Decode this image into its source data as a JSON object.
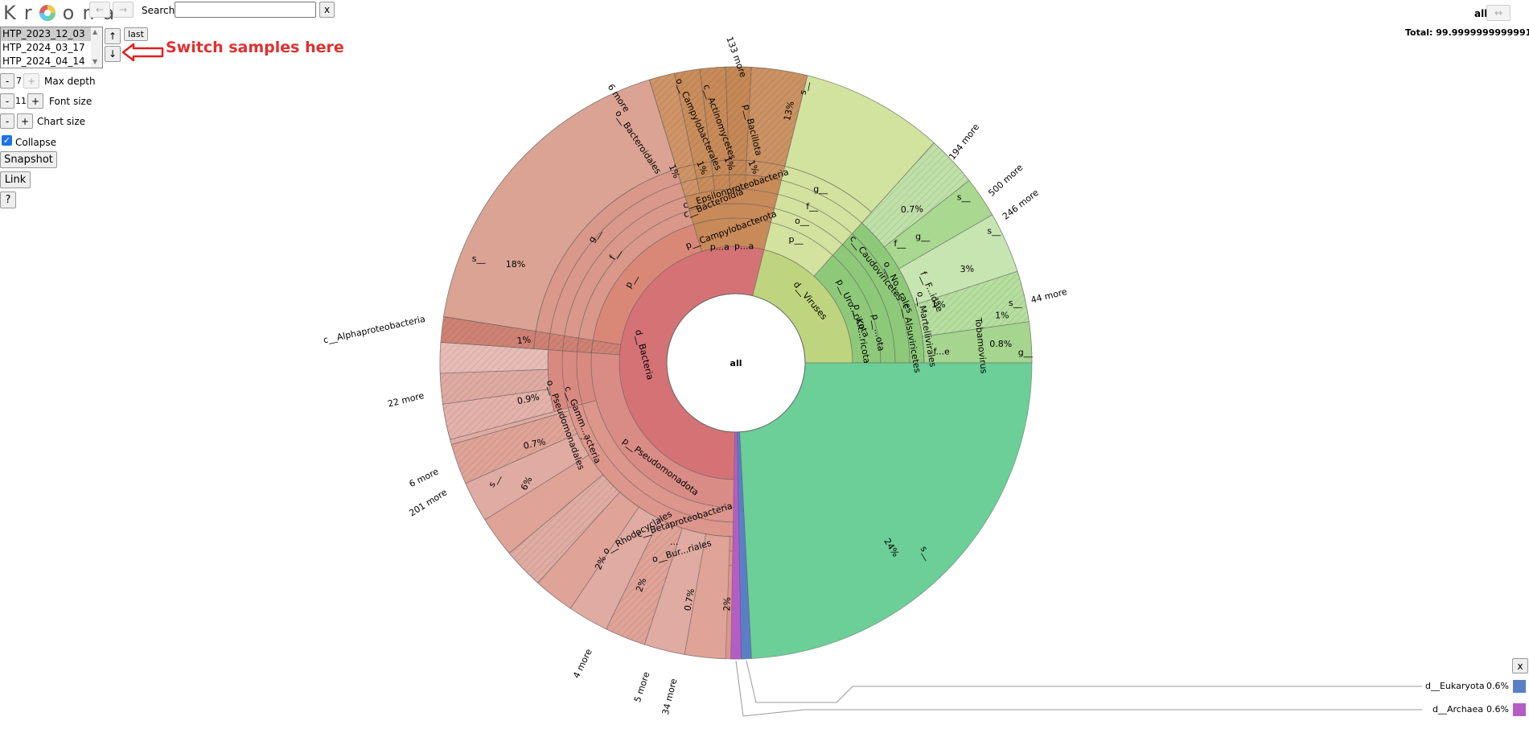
{
  "header": {
    "logo": [
      "K",
      "r",
      "o",
      "n",
      "a"
    ],
    "back_glyph": "←",
    "fwd_glyph": "→",
    "search_label": "Search:",
    "search_value": "",
    "search_clear": "x"
  },
  "datasets": {
    "options": [
      "HTP_2023_12_03",
      "HTP_2024_03_17",
      "HTP_2024_04_14"
    ],
    "selected": "HTP_2023_12_03",
    "prev_glyph": "↑",
    "next_glyph": "↓",
    "last_label": "last",
    "annotation": "Switch samples here"
  },
  "controls": {
    "max_depth": {
      "value": "7",
      "label": "Max depth",
      "minus": "-",
      "plus": "+"
    },
    "font_size": {
      "value": "11",
      "label": "Font size",
      "minus": "-",
      "plus": "+"
    },
    "chart_size": {
      "label": "Chart size",
      "minus": "-",
      "plus": "+"
    },
    "collapse_label": "Collapse",
    "collapse_checked": true,
    "snapshot_label": "Snapshot",
    "link_label": "Link",
    "help_label": "?"
  },
  "top_right": {
    "focus": "all",
    "expand_glyph": "↔",
    "total": "Total: 99.9999999999991"
  },
  "chart": {
    "center_label": "all",
    "labels": {
      "bacteria": "d__Bacteria",
      "viruses": "d__Viruses",
      "pseudomonadota": "p__Pseudomonadota",
      "campylobacterota": "p__Campylobacterota",
      "bacillota": "p__Bacillota",
      "actinomycetes": "c__Actinomycetes",
      "campylobacterales": "o__Campylobacterales",
      "bacteroidales": "o__Bacteroidales",
      "epsilon": "c__Epsilonproteobacteria",
      "bacteroidia": "c__Bacteroidia",
      "alpha": "c__Alphaproteobacteria",
      "gamma": "c__Gamm...acteria",
      "pseudomonadales": "o__Pseudomonadales",
      "beta": "c__Betaproteobacteria",
      "rhodocyclales": "o__Rhodocyclales",
      "burk": "o__Bur...riales",
      "caudo": "c__Caudoviricetes",
      "uro": "p__Uro...ricota",
      "kit": "p__Kit...ricota",
      "tobamo": "Tobamovirus",
      "marte": "o__Martellivirales",
      "alsuvi": "c__Alsuviricetes",
      "s": "s__",
      "g": "g__",
      "f": "f__",
      "o": "o__",
      "p": "p__",
      "pa": "p...a",
      "fidae": "f__F...idae",
      "no_rales": "o__No...rales",
      "pi_rales": "o__Pi...rales",
      "ota": "p__...ota",
      "fe": "f...e",
      "ellipsis": "...",
      "eles": "c__...eles",
      "c_pea": "c__P...eles",
      "c": "c__"
    },
    "percents": {
      "green": "24%",
      "bacteria_s": "18%",
      "virus_top": "13%",
      "s6": "6%",
      "p3": "3%",
      "p2": "2%",
      "p1": "1%",
      "p09": "0.9%",
      "p07": "0.7%",
      "p08": "0.8%"
    },
    "more": {
      "m133": "133 more",
      "m194": "194 more",
      "m500": "500 more",
      "m246": "246 more",
      "m44": "44 more",
      "m6": "6 more",
      "m22": "22 more",
      "m6b": "6 more",
      "m201": "201 more",
      "m4": "4 more",
      "m5": "5 more",
      "m34": "34 more"
    },
    "colors": {
      "bacteria": "#d47275",
      "bacteria_ring": "#d98878",
      "bacteria_outer": "#daa393",
      "pseudo": "#d98c86",
      "brown": "#c88a58",
      "viruses": "#bfd47e",
      "virus_light": "#d3e29e",
      "green_dark": "#8ec97a",
      "teal": "#6bcf97",
      "eukaryota": "#5a7fc8",
      "archaea": "#b55dc7"
    }
  },
  "key": {
    "eukaryota_label": "d__Eukaryota",
    "eukaryota_pct": "0.6%",
    "archaea_label": "d__Archaea",
    "archaea_pct": "0.6%",
    "close": "x"
  }
}
